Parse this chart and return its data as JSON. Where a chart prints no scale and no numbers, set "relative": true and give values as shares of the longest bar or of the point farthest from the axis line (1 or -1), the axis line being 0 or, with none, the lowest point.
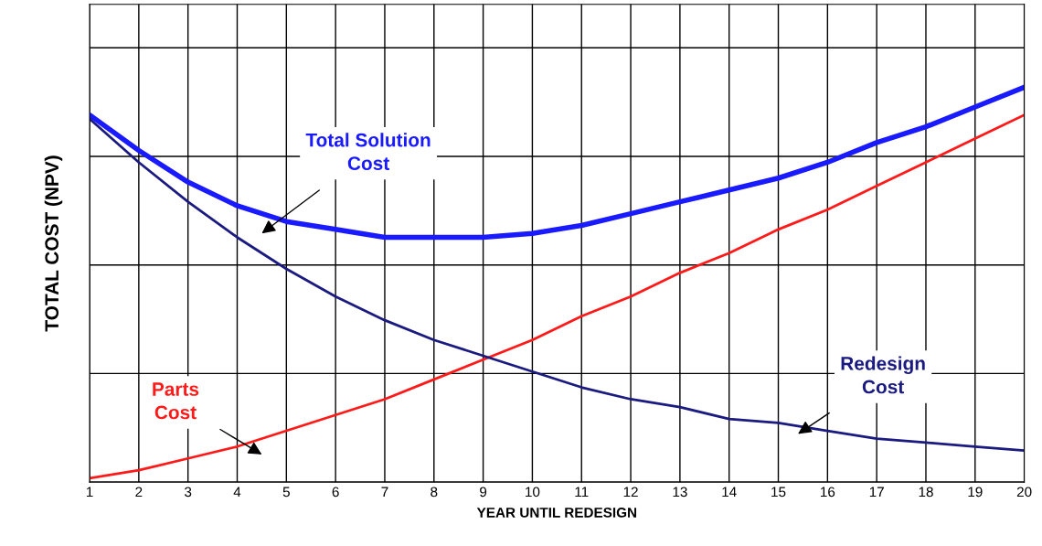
{
  "chart_data": {
    "type": "line",
    "relative": true,
    "xlabel": "YEAR UNTIL REDESIGN",
    "ylabel": "TOTAL COST (NPV)",
    "x": [
      1,
      2,
      3,
      4,
      5,
      6,
      7,
      8,
      9,
      10,
      11,
      12,
      13,
      14,
      15,
      16,
      17,
      18,
      19,
      20
    ],
    "xlim": [
      1,
      20
    ],
    "xticks": [
      1,
      2,
      3,
      4,
      5,
      6,
      7,
      8,
      9,
      10,
      11,
      12,
      13,
      14,
      15,
      16,
      17,
      18,
      19,
      20
    ],
    "grid": true,
    "legend": false,
    "marker": "none",
    "line_style": "solid",
    "series": [
      {
        "name": "Total Solution\nCost",
        "color": "#1a1aff",
        "values": [
          0.93,
          0.84,
          0.76,
          0.7,
          0.66,
          0.64,
          0.62,
          0.62,
          0.62,
          0.63,
          0.65,
          0.68,
          0.71,
          0.74,
          0.77,
          0.81,
          0.86,
          0.9,
          0.95,
          1.0
        ]
      },
      {
        "name": "Parts\nCost",
        "color": "#ff1a1a",
        "values": [
          0.01,
          0.03,
          0.06,
          0.09,
          0.13,
          0.17,
          0.21,
          0.26,
          0.31,
          0.36,
          0.42,
          0.47,
          0.53,
          0.58,
          0.64,
          0.69,
          0.75,
          0.81,
          0.87,
          0.93
        ]
      },
      {
        "name": "Redesign\nCost",
        "color": "#1a1a80",
        "values": [
          0.92,
          0.81,
          0.71,
          0.62,
          0.54,
          0.47,
          0.41,
          0.36,
          0.32,
          0.28,
          0.24,
          0.21,
          0.19,
          0.16,
          0.15,
          0.13,
          0.11,
          0.1,
          0.09,
          0.08
        ]
      }
    ]
  }
}
